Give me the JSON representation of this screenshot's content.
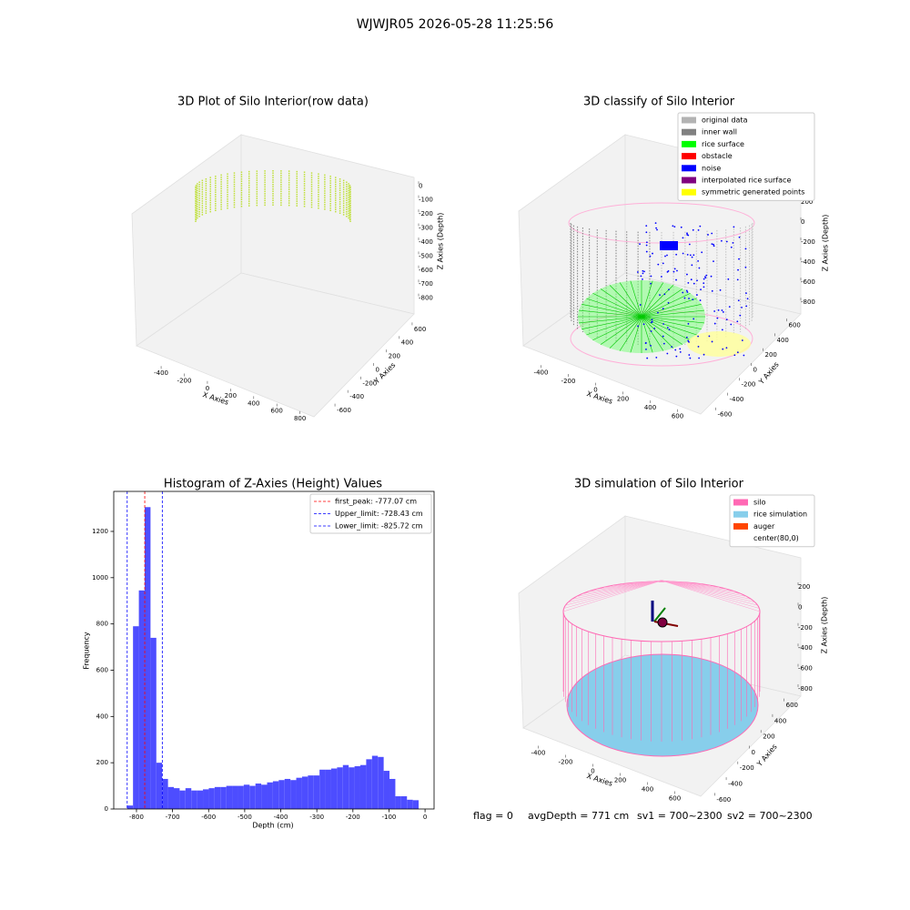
{
  "title": "WJWJR05 2026-05-28 11:25:56",
  "chart_data": [
    {
      "type": "scatter3d",
      "title": "3D Plot of Silo Interior(row data)",
      "colormap": "viridis",
      "xlabel": "X Axies",
      "ylabel": "Y Axies",
      "zlabel": "Z Axies (Depth)",
      "xlim": [
        -550,
        850
      ],
      "ylim": [
        -700,
        700
      ],
      "zlim": [
        -880,
        60
      ],
      "xticks": [
        -400,
        -200,
        0,
        200,
        400,
        600,
        800
      ],
      "yticks": [
        -600,
        -400,
        -200,
        0,
        200,
        400,
        600
      ],
      "zticks": [
        -800,
        -700,
        -600,
        -500,
        -400,
        -300,
        -200,
        -100,
        0
      ]
    },
    {
      "type": "scatter3d",
      "title": "3D classify of Silo Interior",
      "xlabel": "X Axies",
      "ylabel": "Y Axies",
      "zlabel": "Z Axies (Depth)",
      "xlim": [
        -550,
        750
      ],
      "ylim": [
        -700,
        700
      ],
      "zlim": [
        -880,
        280
      ],
      "xticks": [
        -400,
        -200,
        0,
        200,
        400,
        600
      ],
      "yticks": [
        -600,
        -400,
        -200,
        0,
        200,
        400,
        600
      ],
      "zticks": [
        -800,
        -600,
        -400,
        -200,
        0,
        200
      ],
      "series": [
        {
          "name": "original data",
          "color": "#b3b3b3"
        },
        {
          "name": "inner wall",
          "color": "#808080"
        },
        {
          "name": "rice surface",
          "color": "#00ff00"
        },
        {
          "name": "obstacle",
          "color": "#ff0000"
        },
        {
          "name": "noise",
          "color": "#0000ff"
        },
        {
          "name": "interpolated rice surface",
          "color": "#800080"
        },
        {
          "name": "symmetric generated points",
          "color": "#ffff00"
        }
      ]
    },
    {
      "type": "histogram",
      "title": "Histogram of Z-Axies (Height) Values",
      "xlabel": "Depth (cm)",
      "ylabel": "Frequency",
      "color": "#4d4dff",
      "bins": [
        -825.7,
        -809.6,
        -793.4,
        -777.3,
        -761.1,
        -745.0,
        -728.8,
        -712.6,
        -696.5,
        -680.3,
        -664.2,
        -648.0,
        -631.8,
        -615.7,
        -599.5,
        -583.4,
        -567.2,
        -551.0,
        -534.9,
        -518.7,
        -502.6,
        -486.4,
        -470.2,
        -454.1,
        -437.9,
        -421.8,
        -405.6,
        -389.4,
        -373.3,
        -357.1,
        -341.0,
        -324.8,
        -308.6,
        -292.5,
        -276.3,
        -260.2,
        -244.0,
        -227.8,
        -211.7,
        -195.5,
        -179.4,
        -163.2,
        -147.0,
        -130.9,
        -114.7,
        -98.6,
        -82.4,
        -66.2,
        -50.1,
        -33.9,
        -17.8
      ],
      "values": [
        15,
        790,
        945,
        1305,
        740,
        200,
        130,
        95,
        90,
        80,
        90,
        80,
        80,
        85,
        90,
        95,
        95,
        100,
        100,
        100,
        105,
        100,
        110,
        105,
        115,
        120,
        125,
        130,
        125,
        135,
        140,
        145,
        145,
        170,
        170,
        175,
        180,
        190,
        180,
        185,
        190,
        215,
        230,
        225,
        165,
        130,
        55,
        55,
        40,
        38
      ],
      "xlim": [
        -863,
        25
      ],
      "ylim": [
        0,
        1373
      ],
      "xticks": [
        -800,
        -700,
        -600,
        -500,
        -400,
        -300,
        -200,
        -100,
        0
      ],
      "yticks": [
        0,
        200,
        400,
        600,
        800,
        1000,
        1200
      ],
      "vlines": [
        {
          "label": "first_peak: -777.07 cm",
          "value": -777.07,
          "color": "#ff0000"
        },
        {
          "label": "Upper_limit: -728.43 cm",
          "value": -728.43,
          "color": "#0000ff"
        },
        {
          "label": "Lower_limit: -825.72 cm",
          "value": -825.72,
          "color": "#0000ff"
        }
      ]
    },
    {
      "type": "surface3d",
      "title": "3D simulation of Silo Interior",
      "xlabel": "X Axies",
      "ylabel": "Y Axies",
      "zlabel": "Z Axies (Depth)",
      "xlim": [
        -550,
        750
      ],
      "ylim": [
        -700,
        700
      ],
      "zlim": [
        -880,
        280
      ],
      "xticks": [
        -400,
        -200,
        0,
        200,
        400,
        600
      ],
      "yticks": [
        -600,
        -400,
        -200,
        0,
        200,
        400,
        600
      ],
      "zticks": [
        -800,
        -600,
        -400,
        -200,
        0,
        200
      ],
      "series": [
        {
          "name": "silo",
          "color": "#ff69b4"
        },
        {
          "name": "rice simulation",
          "color": "#87ceeb"
        },
        {
          "name": "auger",
          "color": "#ff4500"
        },
        {
          "name": "center(80,0)",
          "color": "#ffffff"
        }
      ]
    }
  ],
  "annotations": [
    "flag = 0",
    "avgDepth = 771 cm",
    "sv1 = 700~2300",
    "sv2 = 700~2300"
  ]
}
